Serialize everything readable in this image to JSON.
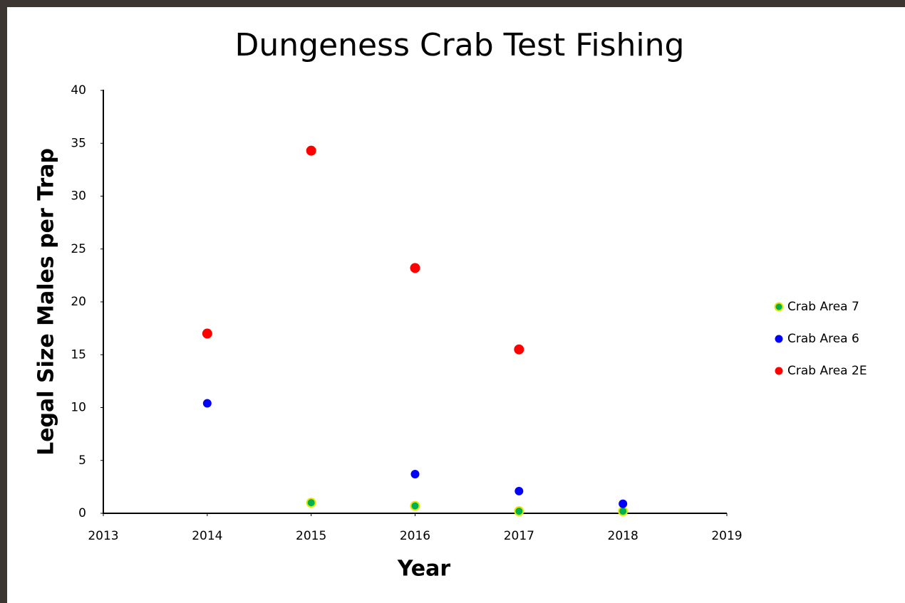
{
  "chart_data": {
    "type": "scatter",
    "title": "Dungeness Crab Test Fishing",
    "x_label": "Year",
    "y_label": "Legal Size Males per Trap",
    "x": [
      2014,
      2015,
      2016,
      2017,
      2018
    ],
    "series": [
      {
        "name": "Crab Area 7",
        "color": "#00b050",
        "edge_color": "#e6e600",
        "values": [
          null,
          1.0,
          0.7,
          0.2,
          0.2
        ]
      },
      {
        "name": "Crab Area 6",
        "color": "#0000ff",
        "values": [
          10.4,
          null,
          3.7,
          2.1,
          0.9
        ]
      },
      {
        "name": "Crab Area 2E",
        "color": "#ff0000",
        "values": [
          17.0,
          34.3,
          23.2,
          15.5,
          null
        ]
      }
    ],
    "xlim": [
      2013,
      2019
    ],
    "xticks": [
      2013,
      2014,
      2015,
      2016,
      2017,
      2018,
      2019
    ],
    "ylim": [
      0,
      40
    ],
    "yticks": [
      0,
      5,
      10,
      15,
      20,
      25,
      30,
      35,
      40
    ],
    "grid": false,
    "legend": "right"
  }
}
